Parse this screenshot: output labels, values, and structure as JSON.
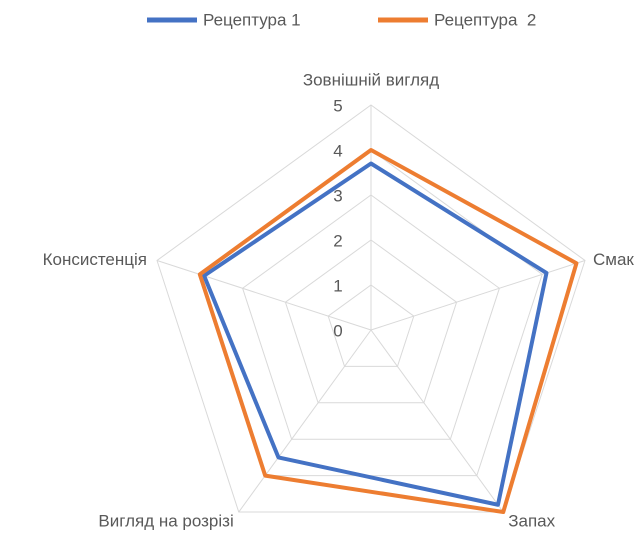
{
  "chart_data": {
    "type": "radar",
    "categories": [
      "Зовнішній вигляд",
      "Смак",
      "Запах",
      "Вигляд на розрізі",
      "Консистенція"
    ],
    "series": [
      {
        "name": "Рецептура 1",
        "color": "#4472c4",
        "values": [
          3.7,
          4.1,
          4.8,
          3.5,
          3.9
        ]
      },
      {
        "name": "Рецептура  2",
        "color": "#ed7d31",
        "values": [
          4.0,
          4.8,
          5.0,
          4.0,
          4.0
        ]
      }
    ],
    "ylim": [
      0,
      5
    ],
    "yticks": [
      0,
      1,
      2,
      3,
      4,
      5
    ],
    "grid": true,
    "legend": "top"
  }
}
